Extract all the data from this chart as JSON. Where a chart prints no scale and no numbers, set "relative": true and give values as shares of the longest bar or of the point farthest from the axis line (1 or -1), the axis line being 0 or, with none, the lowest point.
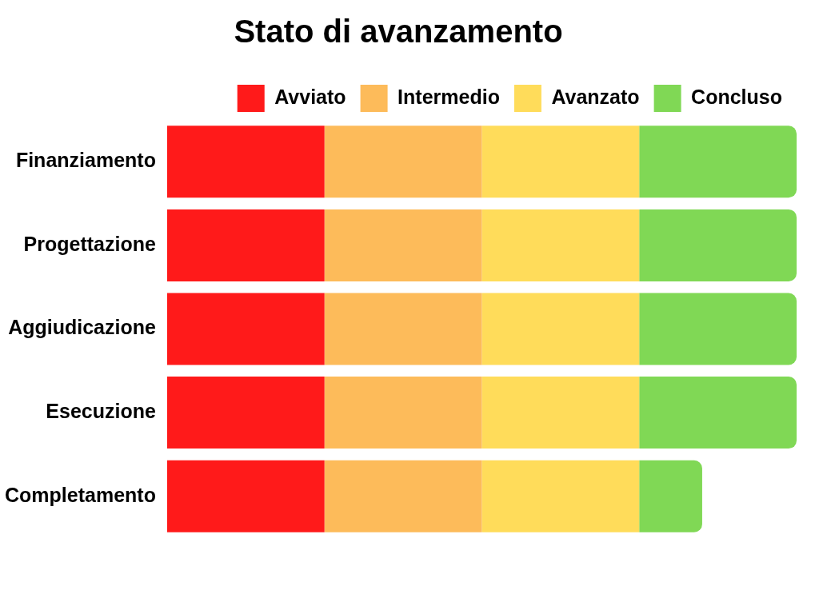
{
  "chart_data": {
    "type": "bar",
    "orientation": "horizontal",
    "stacked": true,
    "relative": true,
    "title": "Stato di avanzamento",
    "legend": "top right",
    "categories": [
      "Finanziamento",
      "Progettazione",
      "Aggiudicazione",
      "Esecuzione",
      "Completamento"
    ],
    "series": [
      {
        "name": "Avviato",
        "color": "#ff1a1a",
        "values": [
          0.25,
          0.25,
          0.25,
          0.25,
          0.25
        ]
      },
      {
        "name": "Intermedio",
        "color": "#fdbb5a",
        "values": [
          0.25,
          0.25,
          0.25,
          0.25,
          0.25
        ]
      },
      {
        "name": "Avanzato",
        "color": "#ffdc5a",
        "values": [
          0.25,
          0.25,
          0.25,
          0.25,
          0.25
        ]
      },
      {
        "name": "Concluso",
        "color": "#80d855",
        "values": [
          0.25,
          0.25,
          0.25,
          0.25,
          0.1
        ]
      }
    ]
  }
}
